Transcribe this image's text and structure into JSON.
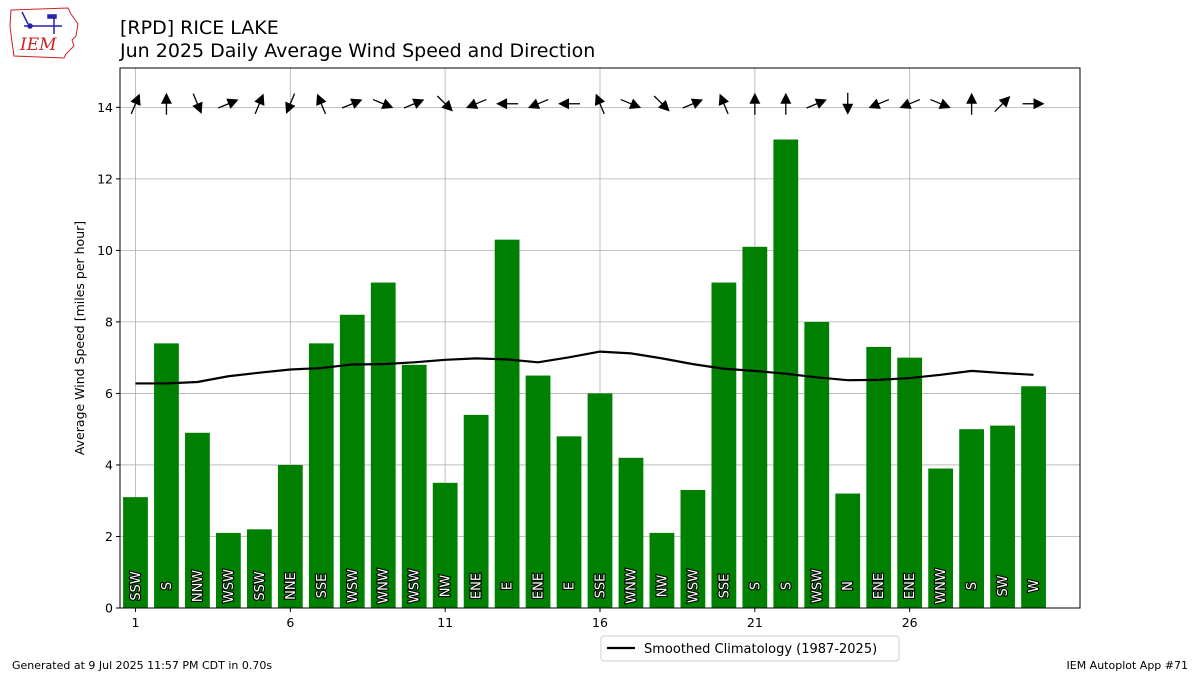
{
  "header": {
    "title_line1": "[RPD] RICE LAKE",
    "title_line2": "Jun 2025 Daily Average Wind Speed and Direction"
  },
  "logo": {
    "text": "IEM"
  },
  "footer": {
    "left": "Generated at 9 Jul 2025 11:57 PM CDT in 0.70s",
    "right": "IEM Autoplot App #71"
  },
  "colors": {
    "bar": "#008000",
    "climatology": "#000000",
    "grid": "#b0b0b0",
    "logo_red": "#cc2222",
    "logo_blue": "#2222aa"
  },
  "chart_data": {
    "type": "bar",
    "ylabel": "Average Wind Speed [miles per hour]",
    "xlabel": "",
    "ylim": [
      0,
      15.1
    ],
    "xlim": [
      0.5,
      31.5
    ],
    "yticks": [
      0,
      2,
      4,
      6,
      8,
      10,
      12,
      14
    ],
    "xticks": [
      1,
      6,
      11,
      16,
      21,
      26
    ],
    "grid": true,
    "legend_position": "bottom-center",
    "days": [
      1,
      2,
      3,
      4,
      5,
      6,
      7,
      8,
      9,
      10,
      11,
      12,
      13,
      14,
      15,
      16,
      17,
      18,
      19,
      20,
      21,
      22,
      23,
      24,
      25,
      26,
      27,
      28,
      29,
      30
    ],
    "values": [
      3.1,
      7.4,
      4.9,
      2.1,
      2.2,
      4.0,
      7.4,
      8.2,
      9.1,
      6.8,
      3.5,
      5.4,
      10.3,
      6.5,
      4.8,
      6.0,
      4.2,
      2.1,
      3.3,
      9.1,
      10.1,
      13.1,
      8.0,
      3.2,
      7.3,
      7.0,
      3.9,
      5.0,
      5.1,
      6.2
    ],
    "directions": [
      "SSW",
      "S",
      "NNW",
      "WSW",
      "SSW",
      "NNE",
      "SSE",
      "WSW",
      "WNW",
      "WSW",
      "NW",
      "ENE",
      "E",
      "ENE",
      "E",
      "SSE",
      "WNW",
      "NW",
      "WSW",
      "SSE",
      "S",
      "S",
      "WSW",
      "N",
      "ENE",
      "ENE",
      "WNW",
      "S",
      "SW",
      "W"
    ],
    "direction_degrees": [
      202.5,
      180,
      337.5,
      247.5,
      202.5,
      22.5,
      157.5,
      247.5,
      292.5,
      247.5,
      315,
      67.5,
      90,
      67.5,
      90,
      157.5,
      292.5,
      315,
      247.5,
      157.5,
      180,
      180,
      247.5,
      0,
      67.5,
      67.5,
      292.5,
      180,
      225,
      270
    ],
    "climatology": {
      "name": "Smoothed Climatology (1987-2025)",
      "values": [
        6.28,
        6.28,
        6.32,
        6.48,
        6.58,
        6.67,
        6.71,
        6.81,
        6.82,
        6.87,
        6.94,
        6.98,
        6.95,
        6.87,
        7.01,
        7.17,
        7.12,
        6.98,
        6.82,
        6.69,
        6.63,
        6.55,
        6.45,
        6.37,
        6.38,
        6.43,
        6.52,
        6.63,
        6.57,
        6.52
      ]
    }
  }
}
